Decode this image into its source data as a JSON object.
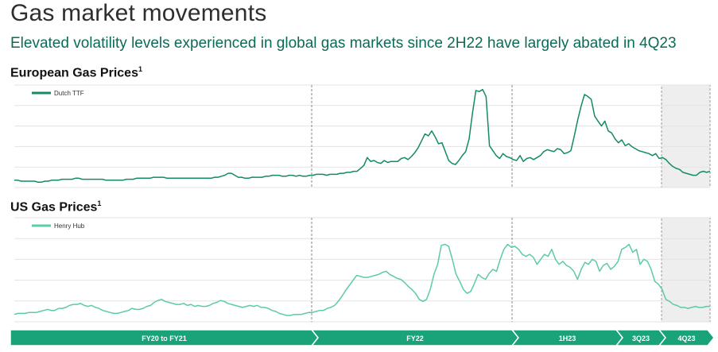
{
  "page": {
    "title": "Gas market movements",
    "subtitle": "Elevated volatility levels experienced in global gas markets since 2H22 have largely abated in 4Q23"
  },
  "colors": {
    "ttf": "#138a68",
    "henry_hub": "#5ccba6",
    "timeline": "#1aa279",
    "grid": "#e3e3e3",
    "shade": "#eeeeee",
    "divider": "#8a8a8a"
  },
  "chart_data": [
    {
      "type": "line",
      "title": "European Gas Prices",
      "title_sup": "1",
      "legend": "top-left",
      "grid": true,
      "series": [
        {
          "name": "Dutch TTF",
          "values": [
            5,
            5,
            4,
            4,
            4,
            4,
            4,
            3,
            3,
            4,
            4,
            5,
            5,
            5,
            6,
            6,
            6,
            6,
            7,
            7,
            6,
            6,
            6,
            6,
            6,
            6,
            6,
            5,
            5,
            5,
            5,
            5,
            5,
            6,
            6,
            6,
            7,
            7,
            7,
            7,
            7,
            8,
            8,
            8,
            8,
            7,
            7,
            7,
            7,
            7,
            7,
            7,
            7,
            7,
            7,
            7,
            7,
            7,
            7,
            8,
            8,
            9,
            10,
            12,
            12,
            10,
            8,
            8,
            7,
            7,
            8,
            8,
            8,
            8,
            9,
            9,
            10,
            10,
            10,
            9,
            9,
            10,
            10,
            9,
            10,
            9,
            9,
            10,
            10,
            11,
            11,
            11,
            10,
            11,
            11,
            11,
            12,
            12,
            13,
            13,
            14,
            14,
            17,
            20,
            28,
            24,
            25,
            23,
            22,
            25,
            23,
            24,
            24,
            24,
            27,
            28,
            26,
            29,
            33,
            38,
            45,
            52,
            50,
            55,
            49,
            42,
            43,
            34,
            25,
            22,
            21,
            25,
            30,
            34,
            47,
            73,
            96,
            95,
            97,
            90,
            40,
            35,
            30,
            27,
            32,
            29,
            28,
            26,
            25,
            30,
            24,
            27,
            28,
            26,
            28,
            30,
            34,
            36,
            35,
            34,
            37,
            36,
            32,
            33,
            35,
            50,
            66,
            80,
            92,
            90,
            87,
            70,
            65,
            60,
            65,
            55,
            53,
            47,
            43,
            46,
            40,
            42,
            39,
            37,
            35,
            34,
            33,
            32,
            30,
            32,
            27,
            28,
            26,
            22,
            19,
            17,
            16,
            13,
            12,
            11,
            10,
            10,
            13,
            14,
            13,
            14
          ]
        }
      ]
    },
    {
      "type": "line",
      "title": "US Gas Prices",
      "title_sup": "1",
      "legend": "top-left",
      "grid": true,
      "series": [
        {
          "name": "Henry Hub",
          "values": [
            5,
            6,
            6,
            6,
            7,
            7,
            7,
            8,
            9,
            10,
            9,
            9,
            11,
            11,
            12,
            14,
            15,
            15,
            16,
            14,
            13,
            14,
            12,
            11,
            9,
            8,
            7,
            6,
            6,
            7,
            8,
            9,
            11,
            10,
            10,
            11,
            13,
            14,
            17,
            19,
            20,
            18,
            17,
            16,
            15,
            15,
            16,
            14,
            15,
            13,
            14,
            13,
            13,
            14,
            16,
            17,
            19,
            18,
            16,
            15,
            14,
            13,
            12,
            13,
            14,
            13,
            14,
            12,
            12,
            11,
            9,
            8,
            6,
            5,
            4,
            4,
            5,
            5,
            5,
            6,
            7,
            7,
            8,
            9,
            9,
            11,
            12,
            14,
            18,
            23,
            29,
            34,
            39,
            44,
            43,
            42,
            42,
            43,
            44,
            45,
            47,
            48,
            45,
            43,
            41,
            40,
            37,
            33,
            30,
            26,
            20,
            18,
            20,
            30,
            45,
            55,
            74,
            75,
            73,
            60,
            45,
            38,
            30,
            26,
            28,
            36,
            45,
            42,
            40,
            46,
            50,
            48,
            60,
            70,
            75,
            72,
            73,
            70,
            65,
            63,
            65,
            62,
            55,
            60,
            65,
            63,
            70,
            60,
            55,
            58,
            54,
            52,
            48,
            40,
            50,
            57,
            55,
            60,
            58,
            48,
            54,
            56,
            50,
            53,
            58,
            70,
            72,
            75,
            67,
            70,
            55,
            60,
            58,
            50,
            38,
            35,
            30,
            20,
            18,
            15,
            14,
            12,
            12,
            11,
            12,
            13,
            12,
            12,
            13,
            13
          ]
        }
      ]
    }
  ],
  "timeline": {
    "segments": [
      {
        "label": "FY20 to FY21"
      },
      {
        "label": "FY22"
      },
      {
        "label": "1H23"
      },
      {
        "label": "3Q23"
      },
      {
        "label": "4Q23"
      }
    ]
  }
}
